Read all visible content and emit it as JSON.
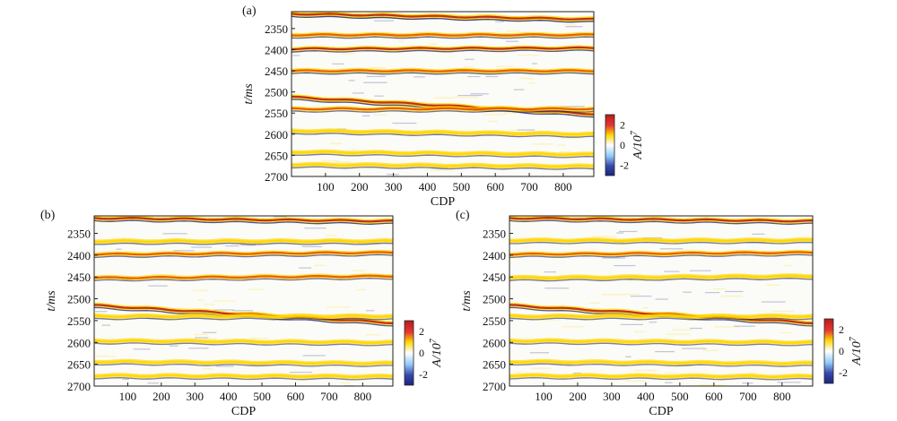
{
  "figure": {
    "panels": [
      {
        "label": "(a)",
        "xlabel": "CDP",
        "ylabel": "t/ms"
      },
      {
        "label": "(b)",
        "xlabel": "CDP",
        "ylabel": "t/ms"
      },
      {
        "label": "(c)",
        "xlabel": "CDP",
        "ylabel": "t/ms"
      }
    ],
    "colorbar": {
      "label": "A/10",
      "exponent": "7",
      "ticks": [
        "2",
        "0",
        "-2"
      ]
    },
    "palette": {
      "negative": "#1a237e",
      "neutral": "#ffffff",
      "positive_low": "#ffd600",
      "positive_mid": "#e65100",
      "positive_high": "#b71c1c"
    }
  },
  "chart_data": [
    {
      "type": "heatmap",
      "title": "",
      "panel_label": "(a)",
      "xlabel": "CDP",
      "ylabel": "t/ms",
      "xlim": [
        0,
        890
      ],
      "ylim": [
        2310,
        2700
      ],
      "y_inverted": true,
      "xticks": [
        100,
        200,
        300,
        400,
        500,
        600,
        700,
        800
      ],
      "yticks": [
        2350,
        2400,
        2450,
        2500,
        2550,
        2600,
        2650,
        2700
      ],
      "colorbar_label": "A/10^7",
      "colorbar_range": [
        -3,
        3
      ],
      "colorbar_ticks": [
        2,
        0,
        -2
      ],
      "horizons": [
        {
          "t_start": 2315,
          "t_end": 2328,
          "amplitude": 3.0
        },
        {
          "t_start": 2365,
          "t_end": 2365,
          "amplitude": 1.6
        },
        {
          "t_start": 2398,
          "t_end": 2396,
          "amplitude": 2.2
        },
        {
          "t_start": 2450,
          "t_end": 2450,
          "amplitude": 1.8
        },
        {
          "t_start": 2512,
          "t_end": 2552,
          "amplitude": 2.6
        },
        {
          "t_start": 2540,
          "t_end": 2540,
          "amplitude": 1.4
        },
        {
          "t_start": 2592,
          "t_end": 2600,
          "amplitude": 1.2
        },
        {
          "t_start": 2642,
          "t_end": 2648,
          "amplitude": 1.0
        },
        {
          "t_start": 2672,
          "t_end": 2676,
          "amplitude": 1.0
        }
      ]
    },
    {
      "type": "heatmap",
      "title": "",
      "panel_label": "(b)",
      "xlabel": "CDP",
      "ylabel": "t/ms",
      "xlim": [
        0,
        890
      ],
      "ylim": [
        2310,
        2700
      ],
      "y_inverted": true,
      "xticks": [
        100,
        200,
        300,
        400,
        500,
        600,
        700,
        800
      ],
      "yticks": [
        2350,
        2400,
        2450,
        2500,
        2550,
        2600,
        2650,
        2700
      ],
      "colorbar_label": "A/10^7",
      "colorbar_range": [
        -3,
        3
      ],
      "colorbar_ticks": [
        2,
        0,
        -2
      ],
      "horizons": [
        {
          "t_start": 2315,
          "t_end": 2322,
          "amplitude": 2.6
        },
        {
          "t_start": 2368,
          "t_end": 2368,
          "amplitude": 1.2
        },
        {
          "t_start": 2398,
          "t_end": 2394,
          "amplitude": 1.6
        },
        {
          "t_start": 2452,
          "t_end": 2448,
          "amplitude": 1.3
        },
        {
          "t_start": 2515,
          "t_end": 2555,
          "amplitude": 2.4
        },
        {
          "t_start": 2540,
          "t_end": 2540,
          "amplitude": 1.2
        },
        {
          "t_start": 2596,
          "t_end": 2600,
          "amplitude": 0.9
        },
        {
          "t_start": 2644,
          "t_end": 2648,
          "amplitude": 0.8
        },
        {
          "t_start": 2676,
          "t_end": 2678,
          "amplitude": 0.8
        }
      ]
    },
    {
      "type": "heatmap",
      "title": "",
      "panel_label": "(c)",
      "xlabel": "CDP",
      "ylabel": "t/ms",
      "xlim": [
        0,
        890
      ],
      "ylim": [
        2310,
        2700
      ],
      "y_inverted": true,
      "xticks": [
        100,
        200,
        300,
        400,
        500,
        600,
        700,
        800
      ],
      "yticks": [
        2350,
        2400,
        2450,
        2500,
        2550,
        2600,
        2650,
        2700
      ],
      "colorbar_label": "A/10^7",
      "colorbar_range": [
        -3,
        3
      ],
      "colorbar_ticks": [
        2,
        0,
        -2
      ],
      "horizons": [
        {
          "t_start": 2315,
          "t_end": 2322,
          "amplitude": 2.4
        },
        {
          "t_start": 2366,
          "t_end": 2366,
          "amplitude": 1.1
        },
        {
          "t_start": 2398,
          "t_end": 2394,
          "amplitude": 1.4
        },
        {
          "t_start": 2452,
          "t_end": 2448,
          "amplitude": 1.2
        },
        {
          "t_start": 2515,
          "t_end": 2555,
          "amplitude": 2.2
        },
        {
          "t_start": 2540,
          "t_end": 2540,
          "amplitude": 1.1
        },
        {
          "t_start": 2596,
          "t_end": 2600,
          "amplitude": 0.9
        },
        {
          "t_start": 2644,
          "t_end": 2648,
          "amplitude": 0.8
        },
        {
          "t_start": 2676,
          "t_end": 2678,
          "amplitude": 0.8
        }
      ]
    }
  ]
}
